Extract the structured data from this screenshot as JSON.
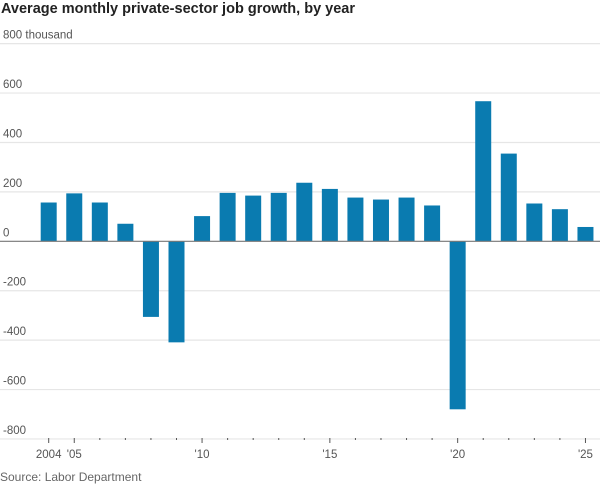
{
  "chart_data": {
    "type": "bar",
    "title": "Average monthly private-sector job growth, by year",
    "ylabel": "",
    "xlabel": "",
    "y_unit_label": "thousand",
    "ylim": [
      -800,
      800
    ],
    "yticks": [
      800,
      600,
      400,
      200,
      0,
      -200,
      -400,
      -600,
      -800
    ],
    "ytick_labels": [
      "800 thousand",
      "600",
      "400",
      "200",
      "0",
      "-200",
      "-400",
      "-600",
      "-800"
    ],
    "grid": true,
    "categories": [
      2004,
      2005,
      2006,
      2007,
      2008,
      2009,
      2010,
      2011,
      2012,
      2013,
      2014,
      2015,
      2016,
      2017,
      2018,
      2019,
      2020,
      2021,
      2022,
      2023,
      2024,
      2025
    ],
    "values": [
      157,
      194,
      157,
      71,
      -306,
      -409,
      102,
      196,
      185,
      196,
      237,
      212,
      177,
      169,
      177,
      145,
      -680,
      567,
      355,
      153,
      130,
      58
    ],
    "xtick_labels": [
      {
        "year": 2004,
        "label": "2004"
      },
      {
        "year": 2005,
        "label": "'05"
      },
      {
        "year": 2010,
        "label": "'10"
      },
      {
        "year": 2015,
        "label": "'15"
      },
      {
        "year": 2020,
        "label": "'20"
      },
      {
        "year": 2025,
        "label": "'25"
      }
    ],
    "bar_color": "#0a7bb0",
    "source": "Source: Labor Department"
  }
}
